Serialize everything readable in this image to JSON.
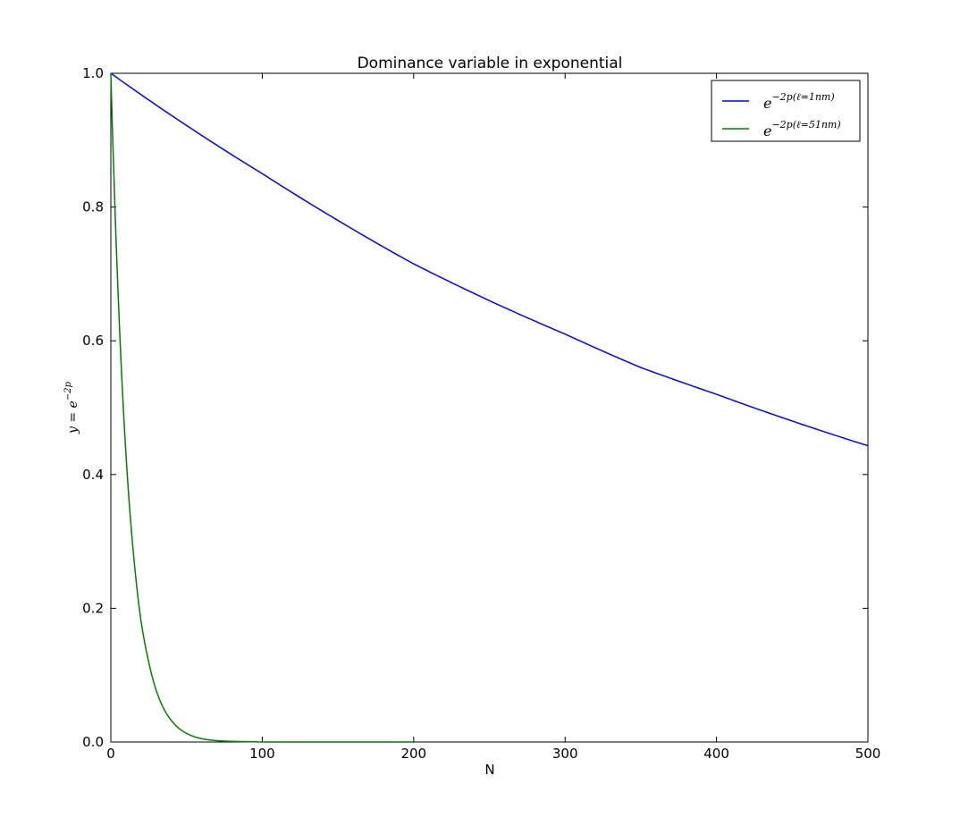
{
  "chart_data": {
    "type": "line",
    "title": "Dominance variable in exponential",
    "xlabel": "N",
    "ylabel": {
      "base": "y = e",
      "exponent": "−2p"
    },
    "xlim": [
      0,
      500
    ],
    "ylim": [
      0.0,
      1.0
    ],
    "xticks": [
      0,
      100,
      200,
      300,
      400,
      500
    ],
    "xtick_labels": [
      "0",
      "100",
      "200",
      "300",
      "400",
      "500"
    ],
    "yticks": [
      0.0,
      0.2,
      0.4,
      0.6,
      0.8,
      1.0
    ],
    "ytick_labels": [
      "0.0",
      "0.2",
      "0.4",
      "0.6",
      "0.8",
      "1.0"
    ],
    "grid": false,
    "legend_position": "top-right",
    "series": [
      {
        "key": "l1",
        "name": "e^{−2p(ℓ=1nm)}",
        "legend_base": "e",
        "legend_exponent": "−2p(ℓ=1nm)",
        "color": "#0000ff",
        "x": [
          0,
          50,
          100,
          150,
          200,
          250,
          300,
          350,
          400,
          450,
          500
        ],
        "y": [
          1.0,
          0.922,
          0.85,
          0.78,
          0.715,
          0.66,
          0.61,
          0.56,
          0.52,
          0.48,
          0.443
        ],
        "x_max": 500
      },
      {
        "key": "l51",
        "name": "e^{−2p(ℓ=51nm)}",
        "legend_base": "e",
        "legend_exponent": "−2p(ℓ=51nm)",
        "color": "#008000",
        "x": [
          0,
          1,
          2,
          3,
          5,
          8,
          10,
          15,
          20,
          25,
          30,
          40,
          50,
          60,
          70,
          80,
          100,
          150,
          200
        ],
        "y": [
          1.0,
          0.92,
          0.85,
          0.78,
          0.66,
          0.51,
          0.43,
          0.28,
          0.18,
          0.12,
          0.077,
          0.032,
          0.013,
          0.005,
          0.002,
          0.001,
          0.0,
          0.0,
          0.0
        ],
        "x_max": 200
      }
    ]
  }
}
